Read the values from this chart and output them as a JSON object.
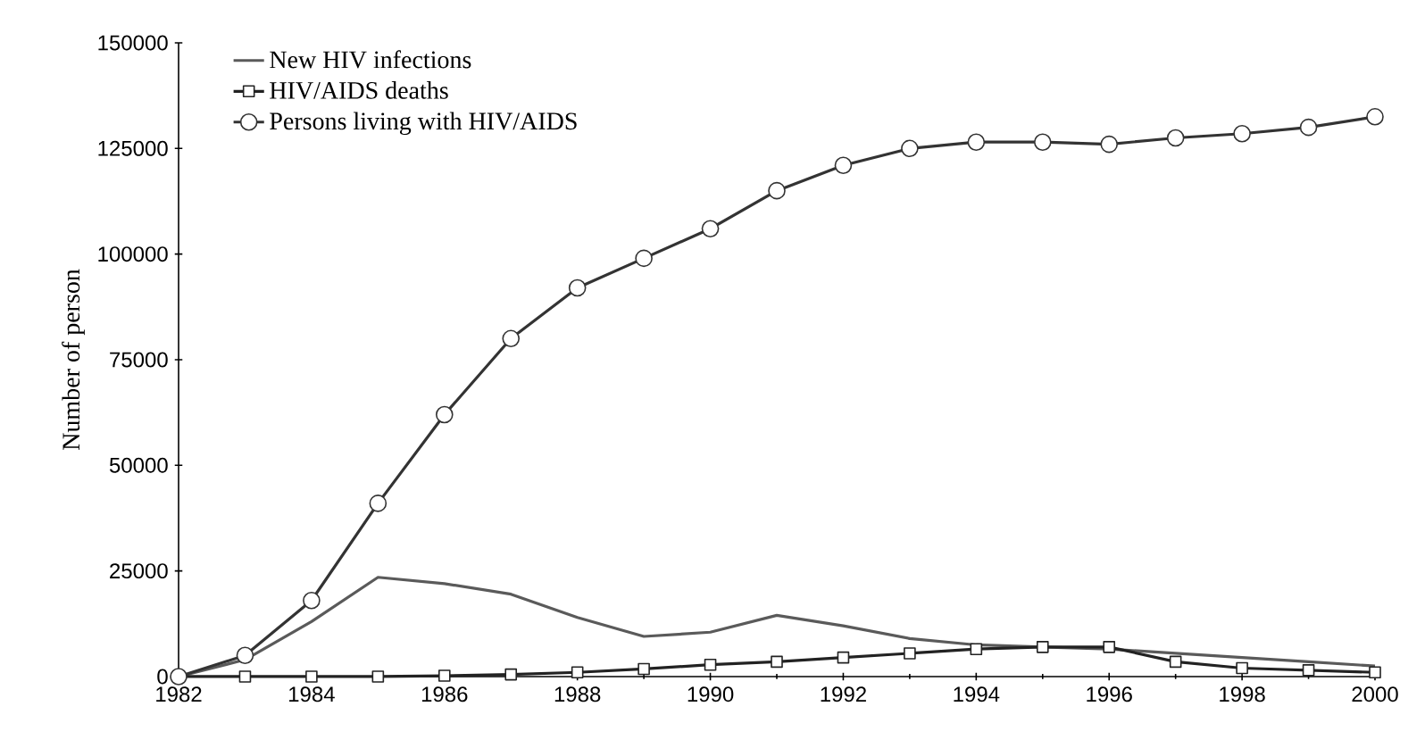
{
  "chart_data": {
    "type": "line",
    "ylabel": "Number of person",
    "x": [
      1982,
      1983,
      1984,
      1985,
      1986,
      1987,
      1988,
      1989,
      1990,
      1991,
      1992,
      1993,
      1994,
      1995,
      1996,
      1997,
      1998,
      1999,
      2000
    ],
    "xlim": [
      1982,
      2000
    ],
    "xticks": [
      1982,
      1984,
      1986,
      1988,
      1990,
      1992,
      1994,
      1996,
      1998,
      2000
    ],
    "ylim": [
      0,
      150000
    ],
    "yticks": [
      0,
      25000,
      50000,
      75000,
      100000,
      125000,
      150000
    ],
    "grid": false,
    "legend": "top left",
    "series": [
      {
        "name": "New HIV infections",
        "color": "#5a5a5a",
        "marker": "none",
        "values": [
          0,
          4000,
          13000,
          23500,
          22000,
          19500,
          14000,
          9500,
          10500,
          14500,
          12000,
          9000,
          7500,
          7000,
          6500,
          5500,
          4500,
          3500,
          2500
        ]
      },
      {
        "name": "HIV/AIDS deaths",
        "color": "#222222",
        "marker": "square",
        "values": [
          0,
          0,
          0,
          0,
          200,
          500,
          1000,
          1800,
          2800,
          3500,
          4500,
          5500,
          6500,
          7000,
          7000,
          3500,
          2000,
          1500,
          1000
        ]
      },
      {
        "name": "Persons living with HIV/AIDS",
        "color": "#333333",
        "marker": "circle",
        "values": [
          0,
          5000,
          18000,
          41000,
          62000,
          80000,
          92000,
          99000,
          106000,
          115000,
          121000,
          125000,
          126500,
          126500,
          126000,
          127500,
          128500,
          130000,
          132500
        ]
      }
    ]
  }
}
